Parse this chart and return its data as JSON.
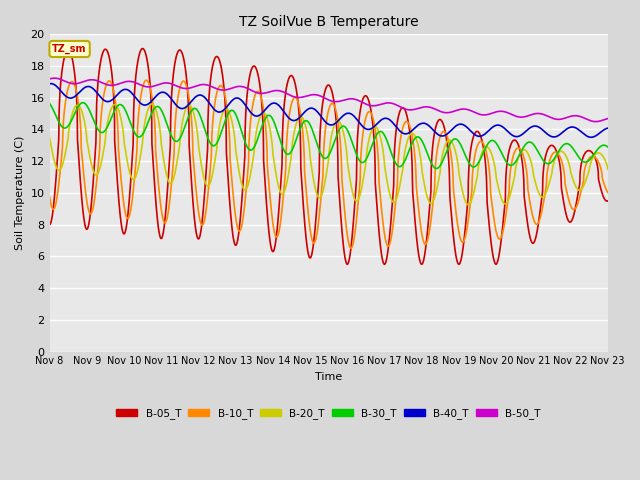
{
  "title": "TZ SoilVue B Temperature",
  "ylabel": "Soil Temperature (C)",
  "xlabel": "Time",
  "ylim": [
    0,
    20
  ],
  "plot_bg": "#e8e8e8",
  "fig_bg": "#d8d8d8",
  "grid_color": "#ffffff",
  "annotation_text": "TZ_sm",
  "annotation_bg": "#ffffcc",
  "annotation_border": "#bbaa00",
  "series_names": [
    "B-05_T",
    "B-10_T",
    "B-20_T",
    "B-30_T",
    "B-40_T",
    "B-50_T"
  ],
  "series_colors": [
    "#cc0000",
    "#ff8800",
    "#cccc00",
    "#00cc00",
    "#0000cc",
    "#cc00cc"
  ],
  "xtick_labels": [
    "Nov 8",
    "Nov 9",
    "Nov 10",
    "Nov 11",
    "Nov 12",
    "Nov 13",
    "Nov 14",
    "Nov 15",
    "Nov 16",
    "Nov 17",
    "Nov 18",
    "Nov 19",
    "Nov 20",
    "Nov 21",
    "Nov 22",
    "Nov 23"
  ],
  "ytick_vals": [
    0,
    2,
    4,
    6,
    8,
    10,
    12,
    14,
    16,
    18,
    20
  ]
}
